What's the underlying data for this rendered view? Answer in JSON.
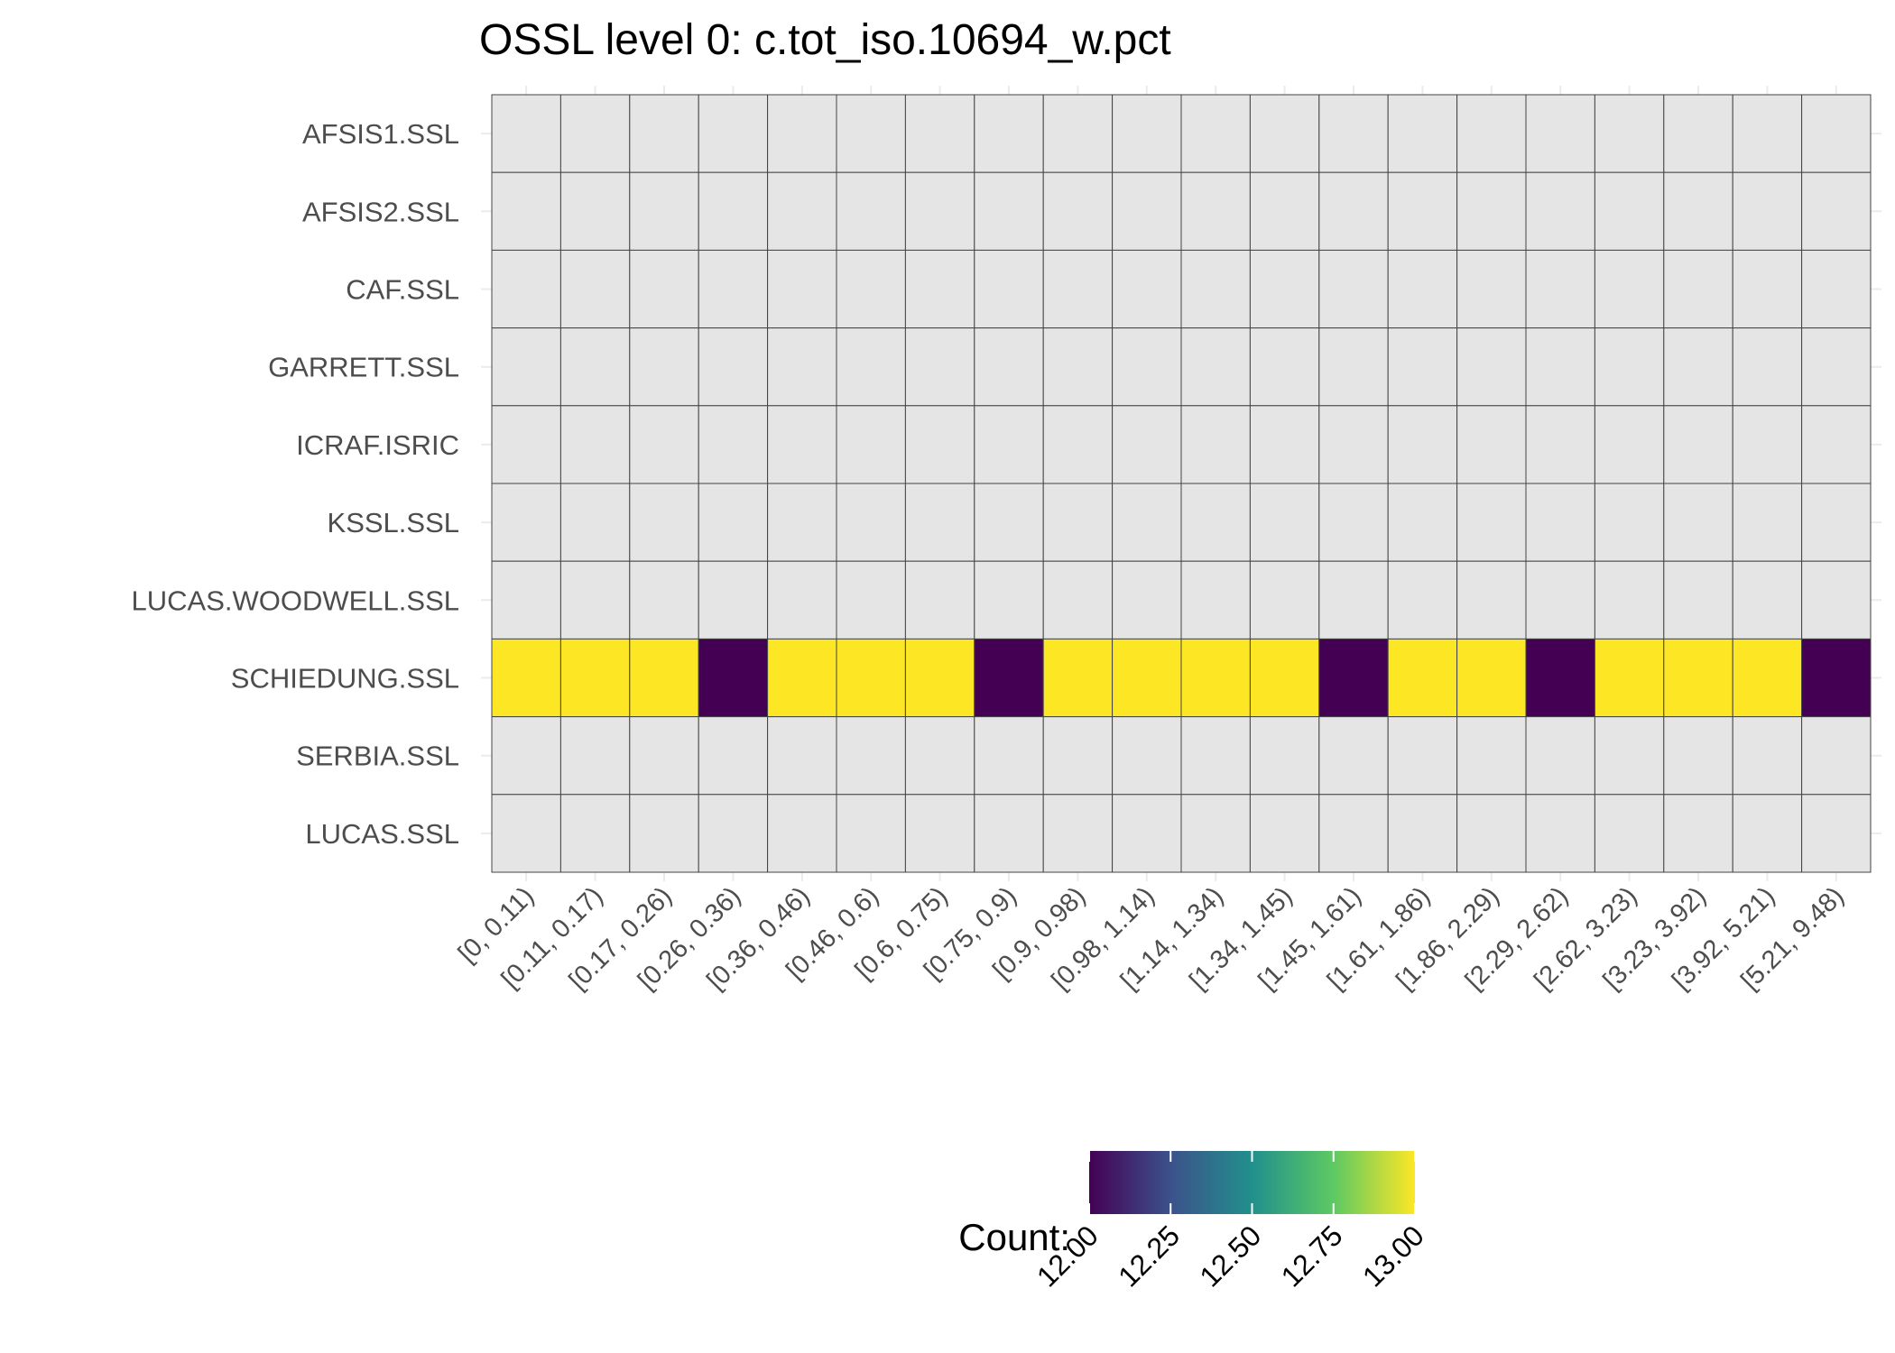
{
  "chart_data": {
    "type": "heatmap",
    "title": "OSSL level 0: c.tot_iso.10694_w.pct",
    "x_categories": [
      "[0, 0.11)",
      "[0.11, 0.17)",
      "[0.17, 0.26)",
      "[0.26, 0.36)",
      "[0.36, 0.46)",
      "[0.46, 0.6)",
      "[0.6, 0.75)",
      "[0.75, 0.9)",
      "[0.9, 0.98)",
      "[0.98, 1.14)",
      "[1.14, 1.34)",
      "[1.34, 1.45)",
      "[1.45, 1.61)",
      "[1.61, 1.86)",
      "[1.86, 2.29)",
      "[2.29, 2.62)",
      "[2.62, 3.23)",
      "[3.23, 3.92)",
      "[3.92, 5.21)",
      "[5.21, 9.48)"
    ],
    "y_categories": [
      "AFSIS1.SSL",
      "AFSIS2.SSL",
      "CAF.SSL",
      "GARRETT.SSL",
      "ICRAF.ISRIC",
      "KSSL.SSL",
      "LUCAS.WOODWELL.SSL",
      "SCHIEDUNG.SSL",
      "SERBIA.SSL",
      "LUCAS.SSL"
    ],
    "values": [
      [
        null,
        null,
        null,
        null,
        null,
        null,
        null,
        null,
        null,
        null,
        null,
        null,
        null,
        null,
        null,
        null,
        null,
        null,
        null,
        null
      ],
      [
        null,
        null,
        null,
        null,
        null,
        null,
        null,
        null,
        null,
        null,
        null,
        null,
        null,
        null,
        null,
        null,
        null,
        null,
        null,
        null
      ],
      [
        null,
        null,
        null,
        null,
        null,
        null,
        null,
        null,
        null,
        null,
        null,
        null,
        null,
        null,
        null,
        null,
        null,
        null,
        null,
        null
      ],
      [
        null,
        null,
        null,
        null,
        null,
        null,
        null,
        null,
        null,
        null,
        null,
        null,
        null,
        null,
        null,
        null,
        null,
        null,
        null,
        null
      ],
      [
        null,
        null,
        null,
        null,
        null,
        null,
        null,
        null,
        null,
        null,
        null,
        null,
        null,
        null,
        null,
        null,
        null,
        null,
        null,
        null
      ],
      [
        null,
        null,
        null,
        null,
        null,
        null,
        null,
        null,
        null,
        null,
        null,
        null,
        null,
        null,
        null,
        null,
        null,
        null,
        null,
        null
      ],
      [
        null,
        null,
        null,
        null,
        null,
        null,
        null,
        null,
        null,
        null,
        null,
        null,
        null,
        null,
        null,
        null,
        null,
        null,
        null,
        null
      ],
      [
        13,
        13,
        13,
        12,
        13,
        13,
        13,
        12,
        13,
        13,
        13,
        13,
        12,
        13,
        13,
        12,
        13,
        13,
        13,
        12
      ],
      [
        null,
        null,
        null,
        null,
        null,
        null,
        null,
        null,
        null,
        null,
        null,
        null,
        null,
        null,
        null,
        null,
        null,
        null,
        null,
        null
      ],
      [
        null,
        null,
        null,
        null,
        null,
        null,
        null,
        null,
        null,
        null,
        null,
        null,
        null,
        null,
        null,
        null,
        null,
        null,
        null,
        null
      ]
    ],
    "legend": {
      "title": "Count:",
      "placement": "bottom",
      "range": [
        12,
        13
      ],
      "tick_labels": [
        "12.00",
        "12.25",
        "12.50",
        "12.75",
        "13.00"
      ],
      "palette": [
        "#440154",
        "#3b528b",
        "#21908c",
        "#5dc963",
        "#fde725"
      ]
    },
    "na_color": "#e5e5e5",
    "grid_color": "#444444",
    "grid": true
  }
}
